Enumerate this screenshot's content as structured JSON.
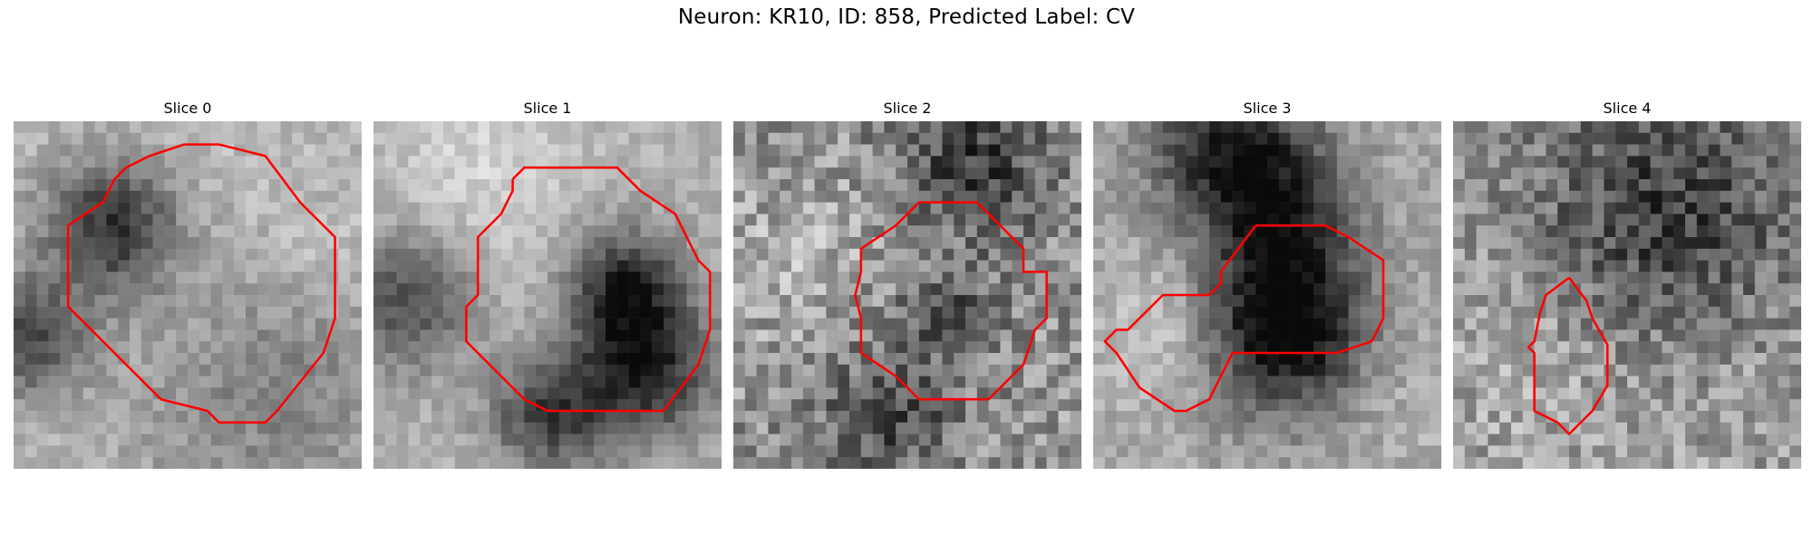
{
  "figure": {
    "suptitle": "Neuron: KR10, ID: 858, Predicted Label: CV",
    "contour_color": "#ff0000",
    "colormap": "gray"
  },
  "panels": [
    {
      "title": "Slice 0",
      "seed": 11,
      "base": 0.72,
      "blobs": [
        [
          0.28,
          0.3,
          0.14,
          -0.55
        ],
        [
          0.05,
          0.62,
          0.12,
          -0.45
        ],
        [
          0.7,
          0.72,
          0.3,
          -0.25
        ],
        [
          0.5,
          0.45,
          0.3,
          0.1
        ],
        [
          0.9,
          0.4,
          0.1,
          0.1
        ]
      ],
      "noise": 0.09
    },
    {
      "title": "Slice 1",
      "seed": 23,
      "base": 0.7,
      "blobs": [
        [
          0.72,
          0.48,
          0.12,
          -0.55
        ],
        [
          0.78,
          0.72,
          0.14,
          -0.55
        ],
        [
          0.1,
          0.52,
          0.14,
          -0.4
        ],
        [
          0.5,
          0.84,
          0.12,
          -0.45
        ],
        [
          0.45,
          0.5,
          0.22,
          0.05
        ],
        [
          0.3,
          0.12,
          0.18,
          0.12
        ]
      ],
      "noise": 0.08
    },
    {
      "title": "Slice 2",
      "seed": 37,
      "base": 0.58,
      "blobs": [
        [
          0.7,
          0.1,
          0.16,
          -0.35
        ],
        [
          0.45,
          0.85,
          0.14,
          -0.3
        ],
        [
          0.62,
          0.55,
          0.1,
          -0.25
        ],
        [
          0.2,
          0.4,
          0.18,
          0.1
        ]
      ],
      "noise": 0.2
    },
    {
      "title": "Slice 3",
      "seed": 41,
      "base": 0.65,
      "blobs": [
        [
          0.55,
          0.6,
          0.16,
          -0.7
        ],
        [
          0.4,
          0.08,
          0.16,
          -0.55
        ],
        [
          0.55,
          0.3,
          0.14,
          -0.4
        ],
        [
          0.2,
          0.6,
          0.14,
          0.15
        ],
        [
          0.9,
          0.8,
          0.16,
          0.05
        ]
      ],
      "noise": 0.1
    },
    {
      "title": "Slice 4",
      "seed": 53,
      "base": 0.62,
      "blobs": [
        [
          0.6,
          0.28,
          0.28,
          -0.4
        ],
        [
          0.3,
          0.6,
          0.22,
          0.1
        ],
        [
          0.8,
          0.7,
          0.18,
          0.05
        ]
      ],
      "noise": 0.18
    }
  ]
}
